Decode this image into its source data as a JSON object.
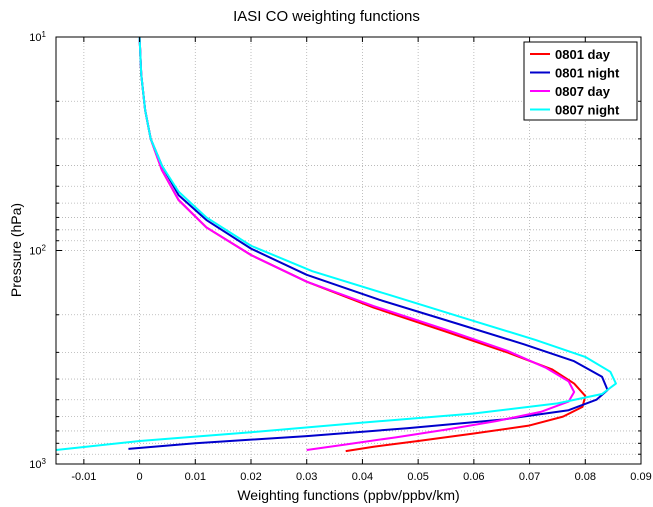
{
  "chart_data": {
    "type": "line",
    "title": "IASI CO weighting functions",
    "xlabel": "Weighting functions (ppbv/ppbv/km)",
    "ylabel": "Pressure (hPa)",
    "xlim": [
      -0.015,
      0.09
    ],
    "ylim": [
      1000,
      10
    ],
    "y_scale": "log",
    "y_reversed": true,
    "grid": true,
    "legend_position": "top-right",
    "x_ticks": [
      -0.01,
      0,
      0.01,
      0.02,
      0.03,
      0.04,
      0.05,
      0.06,
      0.07,
      0.08,
      0.09
    ],
    "x_tick_labels": [
      "-0.01",
      "0",
      "0.01",
      "0.02",
      "0.03",
      "0.04",
      "0.05",
      "0.06",
      "0.07",
      "0.08",
      "0.09"
    ],
    "y_ticks": [
      {
        "base": "10",
        "exp": "1",
        "value": 10
      },
      {
        "base": "10",
        "exp": "2",
        "value": 100
      },
      {
        "base": "10",
        "exp": "3",
        "value": 1000
      }
    ],
    "series": [
      {
        "name": "0801 day",
        "color": "#ff0000",
        "points": [
          [
            0.0,
            10
          ],
          [
            0.0003,
            15
          ],
          [
            0.001,
            22
          ],
          [
            0.002,
            30
          ],
          [
            0.004,
            42
          ],
          [
            0.007,
            58
          ],
          [
            0.012,
            78
          ],
          [
            0.02,
            105
          ],
          [
            0.03,
            140
          ],
          [
            0.042,
            185
          ],
          [
            0.055,
            240
          ],
          [
            0.066,
            300
          ],
          [
            0.074,
            360
          ],
          [
            0.078,
            420
          ],
          [
            0.08,
            480
          ],
          [
            0.0795,
            540
          ],
          [
            0.076,
            600
          ],
          [
            0.07,
            660
          ],
          [
            0.06,
            720
          ],
          [
            0.05,
            780
          ],
          [
            0.042,
            830
          ],
          [
            0.037,
            870
          ]
        ]
      },
      {
        "name": "0801 night",
        "color": "#0000cc",
        "points": [
          [
            0.0,
            10
          ],
          [
            0.0003,
            15
          ],
          [
            0.001,
            22
          ],
          [
            0.002,
            30
          ],
          [
            0.004,
            40
          ],
          [
            0.007,
            55
          ],
          [
            0.012,
            72
          ],
          [
            0.02,
            98
          ],
          [
            0.03,
            130
          ],
          [
            0.043,
            170
          ],
          [
            0.057,
            220
          ],
          [
            0.069,
            275
          ],
          [
            0.078,
            330
          ],
          [
            0.083,
            390
          ],
          [
            0.084,
            450
          ],
          [
            0.082,
            500
          ],
          [
            0.077,
            560
          ],
          [
            0.065,
            620
          ],
          [
            0.048,
            680
          ],
          [
            0.03,
            740
          ],
          [
            0.01,
            800
          ],
          [
            -0.002,
            850
          ]
        ]
      },
      {
        "name": "0807 day",
        "color": "#ff00ff",
        "points": [
          [
            0.0,
            10
          ],
          [
            0.0003,
            15
          ],
          [
            0.001,
            22
          ],
          [
            0.002,
            30
          ],
          [
            0.004,
            42
          ],
          [
            0.007,
            58
          ],
          [
            0.012,
            78
          ],
          [
            0.02,
            105
          ],
          [
            0.03,
            140
          ],
          [
            0.042,
            182
          ],
          [
            0.055,
            235
          ],
          [
            0.066,
            295
          ],
          [
            0.073,
            355
          ],
          [
            0.077,
            410
          ],
          [
            0.078,
            460
          ],
          [
            0.077,
            510
          ],
          [
            0.072,
            570
          ],
          [
            0.064,
            630
          ],
          [
            0.055,
            690
          ],
          [
            0.046,
            750
          ],
          [
            0.037,
            810
          ],
          [
            0.03,
            860
          ]
        ]
      },
      {
        "name": "0807 night",
        "color": "#00ffff",
        "points": [
          [
            0.0,
            10
          ],
          [
            0.0003,
            15
          ],
          [
            0.001,
            22
          ],
          [
            0.002,
            30
          ],
          [
            0.004,
            40
          ],
          [
            0.007,
            53
          ],
          [
            0.012,
            70
          ],
          [
            0.02,
            95
          ],
          [
            0.031,
            125
          ],
          [
            0.045,
            162
          ],
          [
            0.059,
            210
          ],
          [
            0.071,
            262
          ],
          [
            0.08,
            315
          ],
          [
            0.0845,
            370
          ],
          [
            0.0855,
            420
          ],
          [
            0.083,
            470
          ],
          [
            0.075,
            520
          ],
          [
            0.06,
            580
          ],
          [
            0.04,
            640
          ],
          [
            0.02,
            710
          ],
          [
            0.0,
            780
          ],
          [
            -0.015,
            860
          ]
        ]
      }
    ]
  }
}
